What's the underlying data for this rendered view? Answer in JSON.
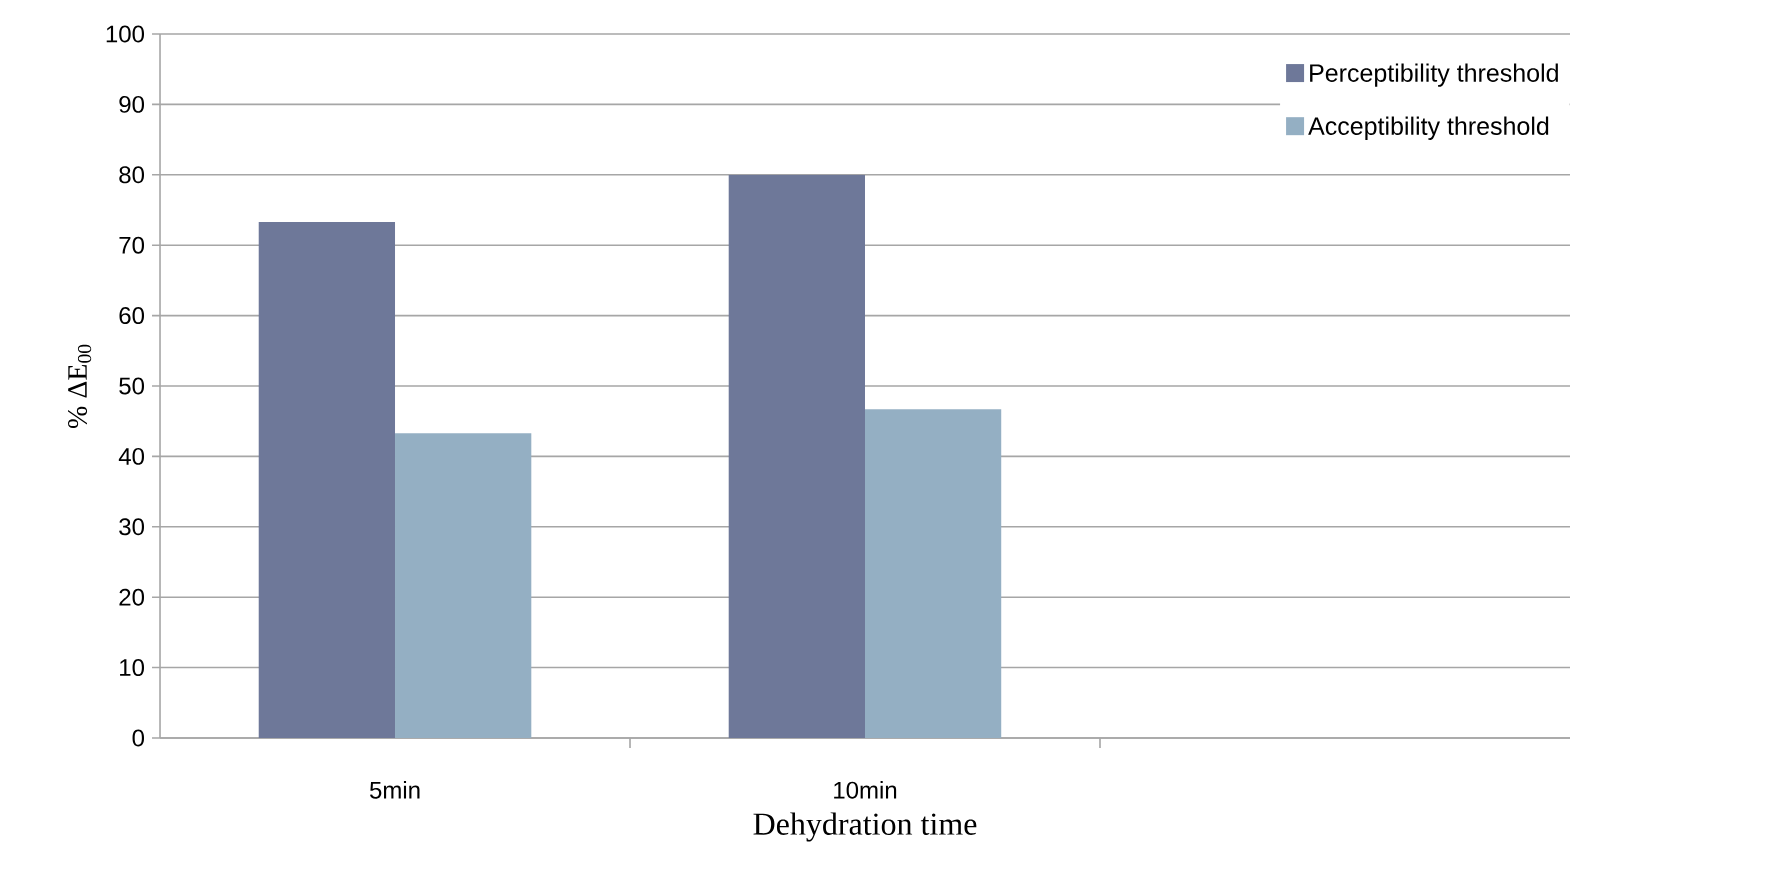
{
  "chart_data": {
    "type": "bar",
    "xlabel": "Dehydration time",
    "ylabel": "% ΔE$_{00}$",
    "categories": [
      "5min",
      "10min",
      null
    ],
    "series": [
      {
        "name": "Perceptibility threshold",
        "color": "#6e7899",
        "values": [
          73.3,
          80,
          null
        ]
      },
      {
        "name": "Acceptibility threshold",
        "color": "#94afc3",
        "values": [
          43.3,
          46.7,
          null
        ]
      }
    ],
    "ylim": [
      0,
      100
    ],
    "yticks": [
      0,
      10,
      20,
      30,
      40,
      50,
      60,
      70,
      80,
      90,
      100
    ],
    "grid": "y",
    "legend": "top right"
  }
}
